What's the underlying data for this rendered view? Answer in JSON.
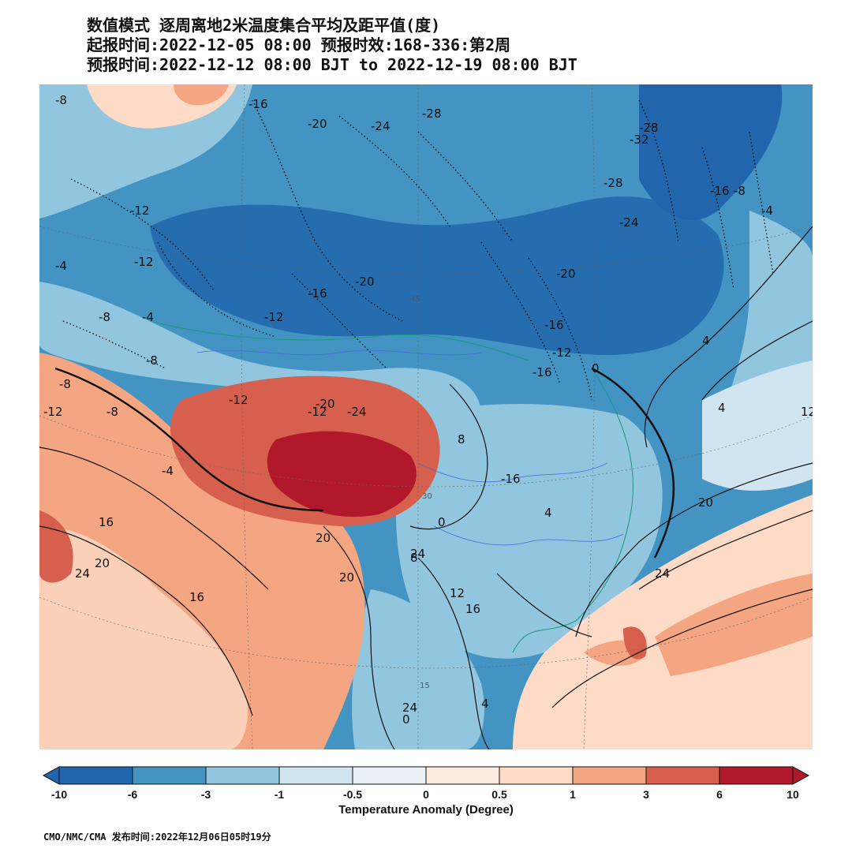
{
  "title": {
    "line1": "数值模式 逐周离地2米温度集合平均及距平值(度)",
    "line2": "起报时间:2022-12-05 08:00 预报时效:168-336:第2周",
    "line3": "预报时间:2022-12-12 08:00 BJT to 2022-12-19 08:00 BJT"
  },
  "map": {
    "lat_labels": [
      "45",
      "30",
      "15"
    ],
    "contour_labels": [
      "-8",
      "-16",
      "-20",
      "-24",
      "-28",
      "-28",
      "-32",
      "-12",
      "-28",
      "-24",
      "-16",
      "-8",
      "-4",
      "-12",
      "-4",
      "-16",
      "-20",
      "-20",
      "-16",
      "-12",
      "-8",
      "-8",
      "-4",
      "-12",
      "-16",
      "-12",
      "-12",
      "-8",
      "-8",
      "-12",
      "-4",
      "0",
      "4",
      "0",
      "4",
      "4",
      "12",
      "16",
      "20",
      "24",
      "20",
      "16",
      "20",
      "24",
      "-16",
      "-20",
      "-24",
      "8",
      "12",
      "16",
      "20",
      "24",
      "4",
      "0",
      "8",
      "24"
    ],
    "colors": {
      "strong_cold": "#2166ac",
      "cold": "#4393c3",
      "cool": "#92c5de",
      "light_cool": "#d1e5f0",
      "light_warm": "#fddbc7",
      "warm": "#f4a582",
      "hot": "#d6604d",
      "strong_hot": "#b2182b"
    }
  },
  "colorbar": {
    "label": "Temperature Anomaly (Degree)",
    "ticks": [
      "-10",
      "-6",
      "-3",
      "-1",
      "-0.5",
      "0",
      "0.5",
      "1",
      "3",
      "6",
      "10"
    ],
    "colors": [
      "#2166ac",
      "#4393c3",
      "#92c5de",
      "#d1e5f0",
      "#e6f0f5",
      "#fbe8df",
      "#fddbc7",
      "#f4a582",
      "#d6604d",
      "#b2182b"
    ]
  },
  "footer": "CMO/NMC/CMA 发布时间:2022年12月06日05时19分"
}
